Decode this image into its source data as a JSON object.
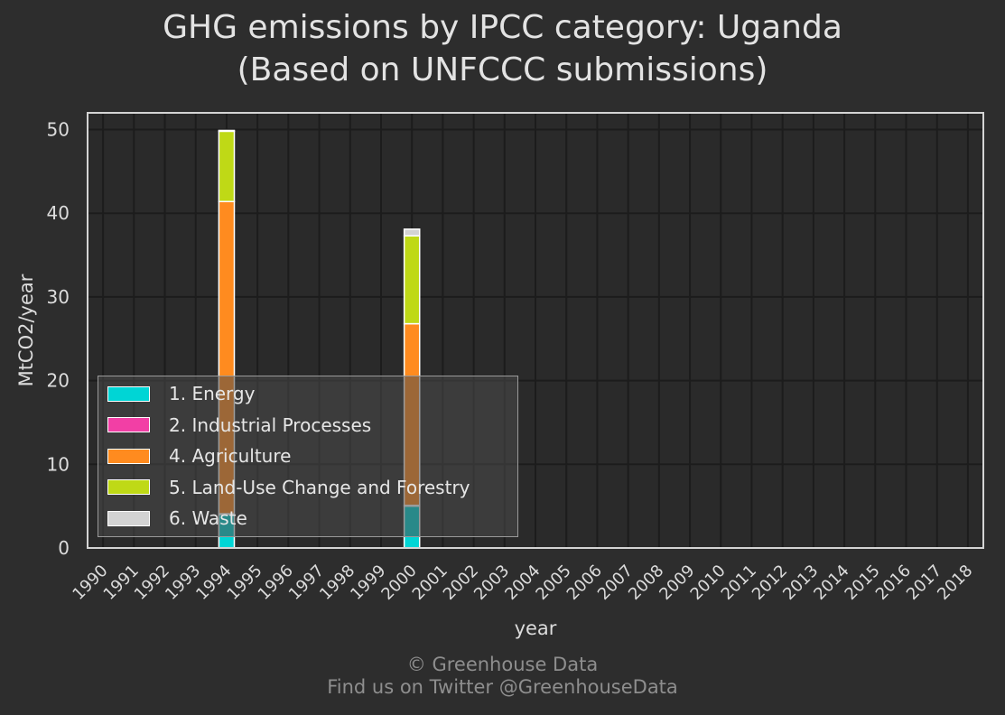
{
  "title": [
    "GHG emissions by IPCC category: Uganda",
    "(Based on UNFCCC submissions)"
  ],
  "footer": [
    "© Greenhouse Data",
    "Find us on Twitter @GreenhouseData"
  ],
  "colors": {
    "background": "#2d2d2d",
    "plot_background": "#2a2a2a",
    "grid": "#1c1c1c",
    "text": "#dcdcdc"
  },
  "chart_data": {
    "type": "bar",
    "stacked": true,
    "xlabel": "year",
    "ylabel": "MtCO2/year",
    "ylim": [
      0,
      52
    ],
    "yticks": [
      0,
      10,
      20,
      30,
      40,
      50
    ],
    "grid": true,
    "legend_position": "bottom-left",
    "categories": [
      "1990",
      "1991",
      "1992",
      "1993",
      "1994",
      "1995",
      "1996",
      "1997",
      "1998",
      "1999",
      "2000",
      "2001",
      "2002",
      "2003",
      "2004",
      "2005",
      "2006",
      "2007",
      "2008",
      "2009",
      "2010",
      "2011",
      "2012",
      "2013",
      "2014",
      "2015",
      "2016",
      "2017",
      "2018"
    ],
    "series": [
      {
        "name": "1. Energy",
        "color": "#00d5d5",
        "values": [
          0,
          0,
          0,
          0,
          4.0,
          0,
          0,
          0,
          0,
          0,
          5.0,
          0,
          0,
          0,
          0,
          0,
          0,
          0,
          0,
          0,
          0,
          0,
          0,
          0,
          0,
          0,
          0,
          0,
          0
        ]
      },
      {
        "name": "2. Industrial Processes",
        "color": "#f23fa5",
        "values": [
          0,
          0,
          0,
          0,
          0.1,
          0,
          0,
          0,
          0,
          0,
          0.1,
          0,
          0,
          0,
          0,
          0,
          0,
          0,
          0,
          0,
          0,
          0,
          0,
          0,
          0,
          0,
          0,
          0,
          0
        ]
      },
      {
        "name": "4. Agriculture",
        "color": "#ff8b1f",
        "values": [
          0,
          0,
          0,
          0,
          37.3,
          0,
          0,
          0,
          0,
          0,
          21.7,
          0,
          0,
          0,
          0,
          0,
          0,
          0,
          0,
          0,
          0,
          0,
          0,
          0,
          0,
          0,
          0,
          0,
          0
        ]
      },
      {
        "name": "5. Land-Use Change and Forestry",
        "color": "#bfd916",
        "values": [
          0,
          0,
          0,
          0,
          8.4,
          0,
          0,
          0,
          0,
          0,
          10.5,
          0,
          0,
          0,
          0,
          0,
          0,
          0,
          0,
          0,
          0,
          0,
          0,
          0,
          0,
          0,
          0,
          0,
          0
        ]
      },
      {
        "name": "6. Waste",
        "color": "#d3d3d3",
        "values": [
          0,
          0,
          0,
          0,
          0.1,
          0,
          0,
          0,
          0,
          0,
          0.8,
          0,
          0,
          0,
          0,
          0,
          0,
          0,
          0,
          0,
          0,
          0,
          0,
          0,
          0,
          0,
          0,
          0,
          0
        ]
      }
    ]
  }
}
